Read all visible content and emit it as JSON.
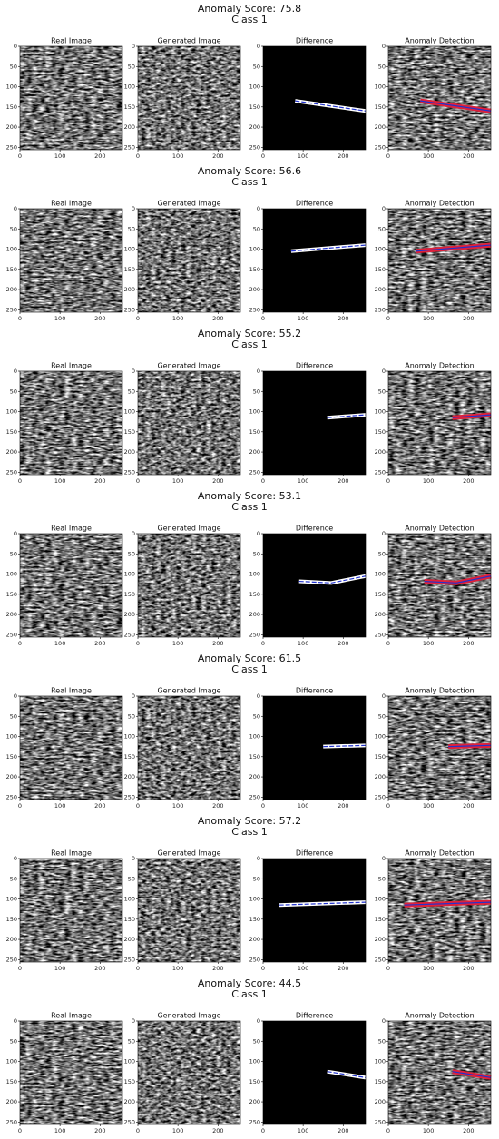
{
  "figures": [
    {
      "title": "Anomaly Score: 75.8",
      "subtitle": "Class 1"
    },
    {
      "title": "Anomaly Score: 56.6",
      "subtitle": "Class 1"
    },
    {
      "title": "Anomaly Score: 55.2",
      "subtitle": "Class 1"
    },
    {
      "title": "Anomaly Score: 53.1",
      "subtitle": "Class 1"
    },
    {
      "title": "Anomaly Score: 61.5",
      "subtitle": "Class 1"
    },
    {
      "title": "Anomaly Score: 57.2",
      "subtitle": "Class 1"
    },
    {
      "title": "Anomaly Score: 44.5",
      "subtitle": "Class 1"
    }
  ],
  "panel_titles": [
    "Real Image",
    "Generated Image",
    "Difference",
    "Anomaly Detection"
  ],
  "xlim": [
    0,
    256
  ],
  "ylim": [
    0,
    256
  ],
  "xticks": [
    0,
    100,
    200
  ],
  "yticks": [
    0,
    50,
    100,
    150,
    200,
    250
  ]
}
